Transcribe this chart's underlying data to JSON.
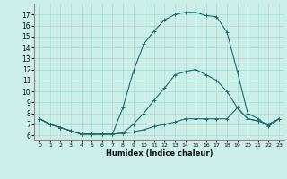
{
  "xlabel": "Humidex (Indice chaleur)",
  "bg_color": "#cceee8",
  "line_color": "#1a6b6b",
  "x_ticks": [
    0,
    1,
    2,
    3,
    4,
    5,
    6,
    7,
    8,
    9,
    10,
    11,
    12,
    13,
    14,
    15,
    16,
    17,
    18,
    19,
    20,
    21,
    22,
    23
  ],
  "y_ticks": [
    6,
    7,
    8,
    9,
    10,
    11,
    12,
    13,
    14,
    15,
    16,
    17
  ],
  "ylim": [
    5.6,
    18.0
  ],
  "xlim": [
    -0.5,
    23.5
  ],
  "line1_x": [
    0,
    1,
    2,
    3,
    4,
    5,
    6,
    7,
    8,
    9,
    10,
    11,
    12,
    13,
    14,
    15,
    16,
    17,
    18,
    19,
    20,
    21,
    22,
    23
  ],
  "line1_y": [
    7.5,
    7.0,
    6.7,
    6.4,
    6.1,
    6.1,
    6.1,
    6.1,
    6.2,
    6.3,
    6.5,
    6.8,
    7.0,
    7.2,
    7.5,
    7.5,
    7.5,
    7.5,
    7.5,
    8.5,
    7.5,
    7.3,
    7.0,
    7.5
  ],
  "line2_x": [
    0,
    1,
    2,
    3,
    4,
    5,
    6,
    7,
    8,
    9,
    10,
    11,
    12,
    13,
    14,
    15,
    16,
    17,
    18,
    19,
    20,
    21,
    22,
    23
  ],
  "line2_y": [
    7.5,
    7.0,
    6.7,
    6.4,
    6.1,
    6.1,
    6.1,
    6.1,
    6.2,
    7.0,
    8.0,
    9.2,
    10.3,
    11.5,
    11.8,
    12.0,
    11.5,
    11.0,
    10.0,
    8.5,
    7.5,
    7.3,
    7.0,
    7.5
  ],
  "line3_x": [
    0,
    1,
    2,
    3,
    4,
    5,
    6,
    7,
    8,
    9,
    10,
    11,
    12,
    13,
    14,
    15,
    16,
    17,
    18,
    19,
    20,
    21,
    22,
    23
  ],
  "line3_y": [
    7.5,
    7.0,
    6.7,
    6.4,
    6.1,
    6.1,
    6.1,
    6.1,
    8.5,
    11.8,
    14.3,
    15.5,
    16.5,
    17.0,
    17.2,
    17.2,
    16.9,
    16.8,
    15.4,
    11.8,
    8.0,
    7.5,
    6.8,
    7.5
  ]
}
